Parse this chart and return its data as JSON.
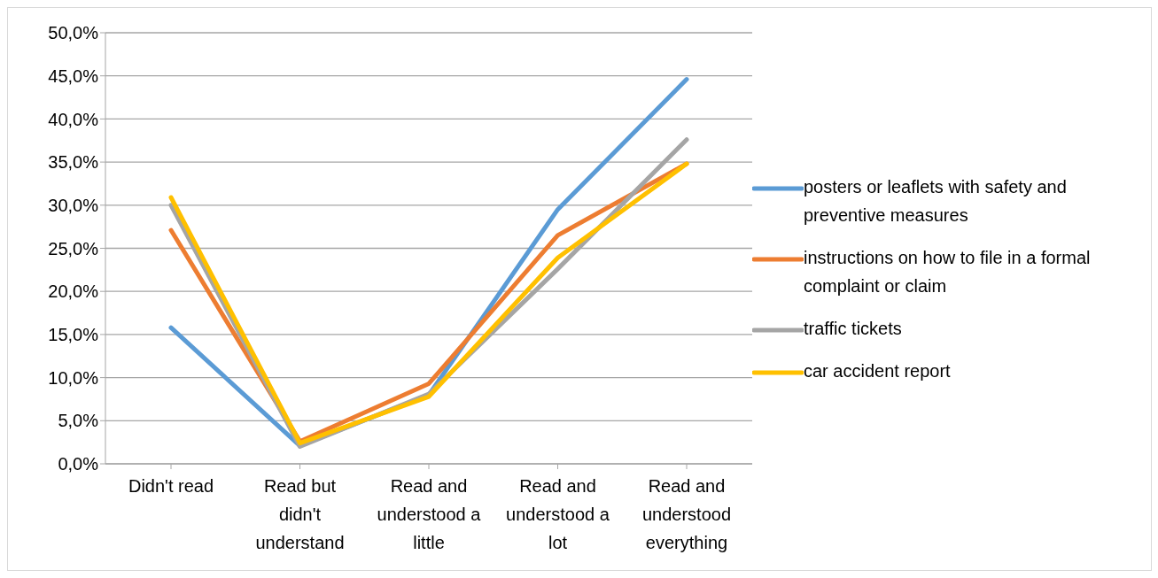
{
  "chart_data": {
    "type": "line",
    "categories": [
      "Didn't read",
      "Read but didn't understand",
      "Read and understood a little",
      "Read and understood a lot",
      "Read and understood everything"
    ],
    "series": [
      {
        "name": "posters or leaflets with safety and preventive measures",
        "color": "#5b9bd5",
        "values": [
          15.8,
          2.1,
          8.0,
          29.5,
          44.6
        ]
      },
      {
        "name": "instructions on how to file in a formal complaint or claim",
        "color": "#ed7d31",
        "values": [
          27.1,
          2.6,
          9.3,
          26.5,
          34.8
        ]
      },
      {
        "name": "traffic tickets",
        "color": "#a5a5a5",
        "values": [
          30.0,
          2.0,
          8.1,
          22.6,
          37.6
        ]
      },
      {
        "name": "car accident report",
        "color": "#ffc000",
        "values": [
          30.9,
          2.4,
          7.8,
          23.9,
          34.8
        ]
      }
    ],
    "ylim": [
      0,
      50
    ],
    "yticks": [
      {
        "value": 0,
        "label": "0,0%"
      },
      {
        "value": 5,
        "label": "5,0%"
      },
      {
        "value": 10,
        "label": "10,0%"
      },
      {
        "value": 15,
        "label": "15,0%"
      },
      {
        "value": 20,
        "label": "20,0%"
      },
      {
        "value": 25,
        "label": "25,0%"
      },
      {
        "value": 30,
        "label": "30,0%"
      },
      {
        "value": 35,
        "label": "35,0%"
      },
      {
        "value": 40,
        "label": "40,0%"
      },
      {
        "value": 45,
        "label": "45,0%"
      },
      {
        "value": 50,
        "label": "50,0%"
      }
    ],
    "grid": "y",
    "legend": "right",
    "marker": "none",
    "line_style": "solid"
  }
}
